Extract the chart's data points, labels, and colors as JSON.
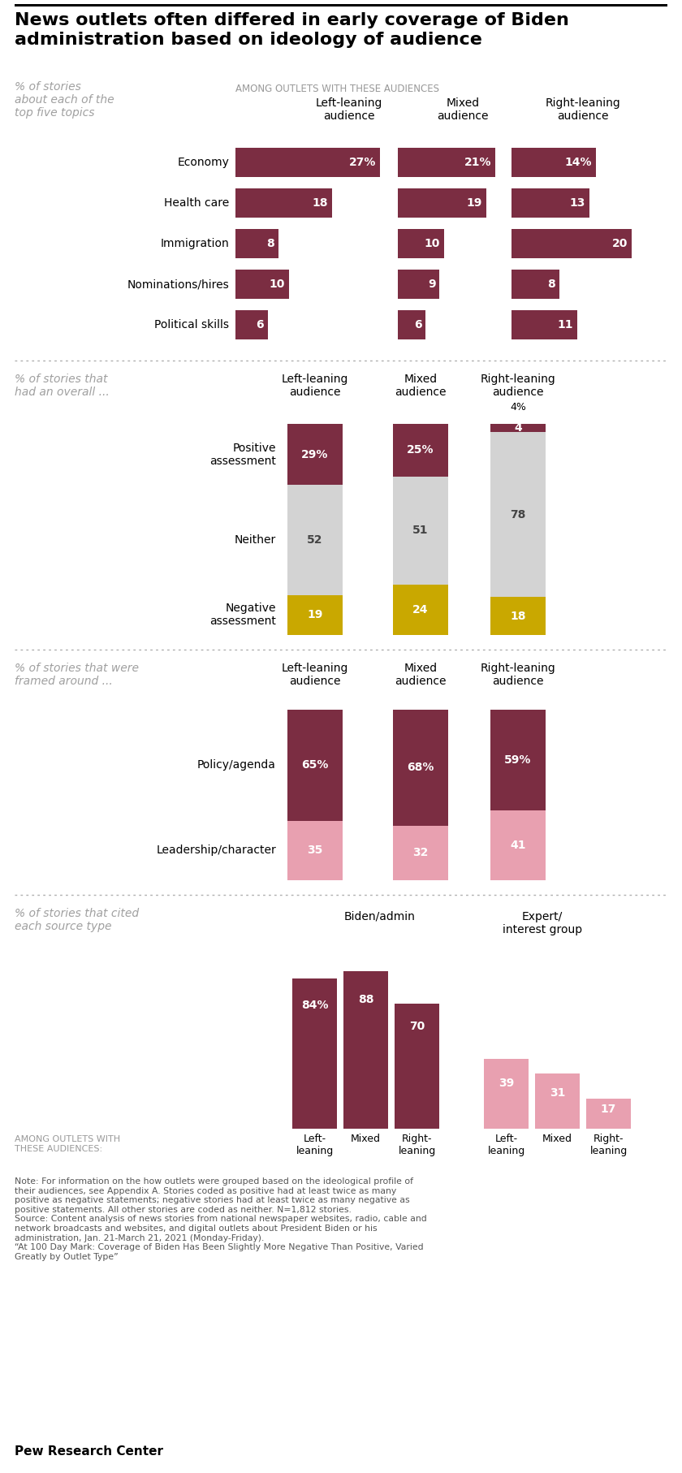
{
  "title": "News outlets often differed in early coverage of Biden\nadministration based on ideology of audience",
  "s1_label": "% of stories\nabout each of the\ntop five topics",
  "s1_header": "AMONG OUTLETS WITH THESE AUDIENCES",
  "s1_col_headers": [
    "Left-leaning\naudience",
    "Mixed\naudience",
    "Right-leaning\naudience"
  ],
  "s1_topics": [
    "Economy",
    "Health care",
    "Immigration",
    "Nominations/hires",
    "Political skills"
  ],
  "s1_data": [
    [
      27,
      21,
      14
    ],
    [
      18,
      19,
      13
    ],
    [
      8,
      10,
      20
    ],
    [
      10,
      9,
      8
    ],
    [
      6,
      6,
      11
    ]
  ],
  "s2_label": "% of stories that\nhad an overall ...",
  "s2_col_headers": [
    "Left-leaning\naudience",
    "Mixed\naudience",
    "Right-leaning\naudience"
  ],
  "s2_positive": [
    29,
    25,
    4
  ],
  "s2_neither": [
    52,
    51,
    78
  ],
  "s2_negative": [
    19,
    24,
    18
  ],
  "s3_label": "% of stories that were\nframed around ...",
  "s3_col_headers": [
    "Left-leaning\naudience",
    "Mixed\naudience",
    "Right-leaning\naudience"
  ],
  "s3_policy": [
    65,
    68,
    59
  ],
  "s3_leadership": [
    35,
    32,
    41
  ],
  "s4_label": "% of stories that cited\neach source type",
  "s4_group_headers": [
    "Biden/admin",
    "Expert/\ninterest group"
  ],
  "s4_aud_labels": [
    "Left-\nleaning",
    "Mixed",
    "Right-\nleaning"
  ],
  "s4_biden": [
    84,
    88,
    70
  ],
  "s4_expert": [
    39,
    31,
    17
  ],
  "note": "Note: For information on the how outlets were grouped based on the ideological profile of\ntheir audiences, see Appendix A. Stories coded as positive had at least twice as many\npositive as negative statements; negative stories had at least twice as many negative as\npositive statements. All other stories are coded as neither. N=1,812 stories.\nSource: Content analysis of news stories from national newspaper websites, radio, cable and\nnetwork broadcasts and websites, and digital outlets about President Biden or his\nadministration, Jan. 21-March 21, 2021 (Monday-Friday).\n“At 100 Day Mark: Coverage of Biden Has Been Slightly More Negative Than Positive, Varied\nGreatly by Outlet Type”",
  "footer": "Pew Research Center",
  "dark_maroon": "#7b2d42",
  "light_pink": "#e8a0b0",
  "gold": "#c9a800",
  "lt_gray": "#d3d3d3",
  "label_gray": "#a0a0a0",
  "header_gray": "#999999",
  "text_dark": "#222222"
}
